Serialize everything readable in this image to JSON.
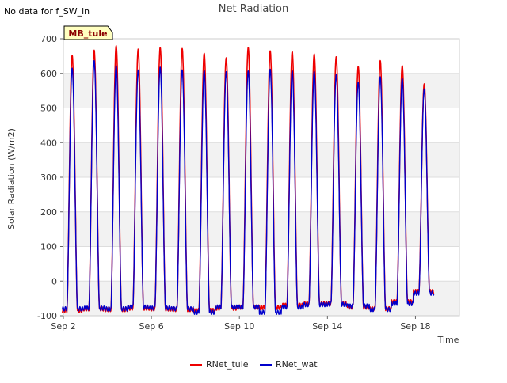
{
  "status_text": "No data for f_SW_in",
  "site_badge": "MB_tule",
  "chart_data": {
    "type": "line",
    "title": "Net Radiation",
    "xlabel": "Time",
    "ylabel": "Solar Radiation (W/m2)",
    "x_unit": "day_of_september",
    "xlim": [
      2.0,
      20.0
    ],
    "ylim": [
      -100,
      700
    ],
    "yticks": [
      -100,
      0,
      100,
      200,
      300,
      400,
      500,
      600,
      700
    ],
    "xticks": [
      {
        "value": 2,
        "label": "Sep 2"
      },
      {
        "value": 6,
        "label": "Sep 6"
      },
      {
        "value": 10,
        "label": "Sep 10"
      },
      {
        "value": 14,
        "label": "Sep 14"
      },
      {
        "value": 18,
        "label": "Sep 18"
      }
    ],
    "grid": "horizontal alternating bands",
    "legend_position": "bottom-center",
    "days": [
      2.4,
      3.4,
      4.4,
      5.4,
      6.4,
      7.4,
      8.4,
      9.4,
      10.4,
      11.4,
      12.4,
      13.4,
      14.4,
      15.4,
      16.4,
      17.4,
      18.4
    ],
    "series": [
      {
        "name": "RNet_tule",
        "color": "#ee0000",
        "daily_peak": [
          652,
          667,
          680,
          670,
          675,
          672,
          658,
          645,
          675,
          665,
          663,
          656,
          648,
          620,
          637,
          622,
          570
        ],
        "night_value": [
          -85,
          -80,
          -82,
          -78,
          -80,
          -82,
          -85,
          -78,
          -75,
          -76,
          -70,
          -65,
          -65,
          -75,
          -80,
          -60,
          -30
        ]
      },
      {
        "name": "RNet_wat",
        "color": "#0000cc",
        "daily_peak": [
          615,
          637,
          622,
          610,
          618,
          610,
          608,
          605,
          607,
          612,
          607,
          606,
          596,
          575,
          590,
          585,
          555
        ],
        "night_value": [
          -80,
          -78,
          -80,
          -75,
          -78,
          -80,
          -90,
          -75,
          -75,
          -90,
          -75,
          -68,
          -67,
          -72,
          -82,
          -65,
          -35
        ]
      }
    ]
  }
}
